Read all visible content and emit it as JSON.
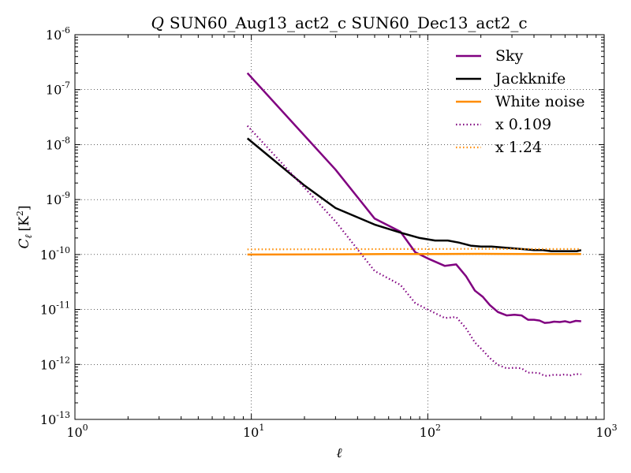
{
  "chart_data": {
    "type": "line",
    "title_var": "Q",
    "title": "SUN60_Aug13_act2_c SUN60_Dec13_act2_c",
    "xlabel": "ℓ",
    "ylabel_main": "C",
    "ylabel_sub": "ℓ",
    "ylabel_unit": "[K",
    "ylabel_unit_sup": "2",
    "ylabel_unit_close": "]",
    "x_scale": "log",
    "y_scale": "log",
    "xlim": [
      1,
      1000
    ],
    "ylim": [
      1e-13,
      1e-06
    ],
    "grid": true,
    "legend_position": "top-right",
    "x_ticks": [
      {
        "base": "10",
        "exp": "0",
        "value": 1
      },
      {
        "base": "10",
        "exp": "1",
        "value": 10
      },
      {
        "base": "10",
        "exp": "2",
        "value": 100
      },
      {
        "base": "10",
        "exp": "3",
        "value": 1000
      }
    ],
    "y_ticks": [
      {
        "base": "10",
        "exp": "-6",
        "value": 1e-06
      },
      {
        "base": "10",
        "exp": "-7",
        "value": 1e-07
      },
      {
        "base": "10",
        "exp": "-8",
        "value": 1e-08
      },
      {
        "base": "10",
        "exp": "-9",
        "value": 1e-09
      },
      {
        "base": "10",
        "exp": "-10",
        "value": 1e-10
      },
      {
        "base": "10",
        "exp": "-11",
        "value": 1e-11
      },
      {
        "base": "10",
        "exp": "-12",
        "value": 1e-12
      },
      {
        "base": "10",
        "exp": "-13",
        "value": 1e-13
      }
    ],
    "series": [
      {
        "name": "Sky",
        "color": "#800080",
        "style": "solid",
        "points": [
          [
            9.5,
            2e-07
          ],
          [
            30,
            3.5e-09
          ],
          [
            50,
            4.5e-10
          ],
          [
            70,
            2.6e-10
          ],
          [
            85,
            1.1e-10
          ],
          [
            100,
            8.5e-11
          ],
          [
            125,
            6.2e-11
          ],
          [
            145,
            6.6e-11
          ],
          [
            165,
            4e-11
          ],
          [
            185,
            2.2e-11
          ],
          [
            205,
            1.7e-11
          ],
          [
            225,
            1.2e-11
          ],
          [
            250,
            9e-12
          ],
          [
            280,
            7.8e-12
          ],
          [
            310,
            8e-12
          ],
          [
            340,
            7.8e-12
          ],
          [
            370,
            6.5e-12
          ],
          [
            400,
            6.5e-12
          ],
          [
            430,
            6.3e-12
          ],
          [
            460,
            5.7e-12
          ],
          [
            490,
            5.8e-12
          ],
          [
            520,
            6e-12
          ],
          [
            560,
            5.9e-12
          ],
          [
            600,
            6.1e-12
          ],
          [
            640,
            5.8e-12
          ],
          [
            690,
            6.2e-12
          ],
          [
            740,
            6.1e-12
          ]
        ]
      },
      {
        "name": "Jackknife",
        "color": "#000000",
        "style": "solid",
        "points": [
          [
            9.5,
            1.3e-08
          ],
          [
            20,
            1.8e-09
          ],
          [
            30,
            7e-10
          ],
          [
            50,
            3.5e-10
          ],
          [
            70,
            2.5e-10
          ],
          [
            90,
            2e-10
          ],
          [
            110,
            1.8e-10
          ],
          [
            130,
            1.8e-10
          ],
          [
            150,
            1.65e-10
          ],
          [
            175,
            1.45e-10
          ],
          [
            200,
            1.4e-10
          ],
          [
            230,
            1.4e-10
          ],
          [
            260,
            1.35e-10
          ],
          [
            300,
            1.3e-10
          ],
          [
            350,
            1.25e-10
          ],
          [
            400,
            1.2e-10
          ],
          [
            450,
            1.2e-10
          ],
          [
            500,
            1.15e-10
          ],
          [
            550,
            1.15e-10
          ],
          [
            600,
            1.15e-10
          ],
          [
            650,
            1.15e-10
          ],
          [
            700,
            1.15e-10
          ],
          [
            740,
            1.2e-10
          ]
        ]
      },
      {
        "name": "White noise",
        "color": "#ff8c00",
        "style": "solid",
        "points": [
          [
            9.5,
            1e-10
          ],
          [
            30,
            1.01e-10
          ],
          [
            60,
            1.02e-10
          ],
          [
            100,
            1.02e-10
          ],
          [
            200,
            1.03e-10
          ],
          [
            400,
            1.02e-10
          ],
          [
            740,
            1.02e-10
          ]
        ]
      },
      {
        "name": "x 0.109",
        "color": "#800080",
        "style": "dotted",
        "points": [
          [
            9.5,
            2.2e-08
          ],
          [
            30,
            4e-10
          ],
          [
            50,
            5e-11
          ],
          [
            70,
            2.8e-11
          ],
          [
            85,
            1.3e-11
          ],
          [
            100,
            1e-11
          ],
          [
            125,
            7e-12
          ],
          [
            145,
            7.3e-12
          ],
          [
            165,
            4.5e-12
          ],
          [
            185,
            2.5e-12
          ],
          [
            205,
            1.8e-12
          ],
          [
            225,
            1.3e-12
          ],
          [
            250,
            9.8e-13
          ],
          [
            280,
            8.5e-13
          ],
          [
            310,
            8.7e-13
          ],
          [
            340,
            8.5e-13
          ],
          [
            370,
            7.1e-13
          ],
          [
            400,
            7.1e-13
          ],
          [
            430,
            6.9e-13
          ],
          [
            460,
            6.2e-13
          ],
          [
            490,
            6.3e-13
          ],
          [
            520,
            6.5e-13
          ],
          [
            560,
            6.4e-13
          ],
          [
            600,
            6.6e-13
          ],
          [
            640,
            6.3e-13
          ],
          [
            690,
            6.7e-13
          ],
          [
            740,
            6.6e-13
          ]
        ]
      },
      {
        "name": "x 1.24",
        "color": "#ff8c00",
        "style": "dotted",
        "points": [
          [
            9.5,
            1.24e-10
          ],
          [
            30,
            1.25e-10
          ],
          [
            60,
            1.26e-10
          ],
          [
            100,
            1.26e-10
          ],
          [
            200,
            1.27e-10
          ],
          [
            400,
            1.26e-10
          ],
          [
            740,
            1.26e-10
          ]
        ]
      }
    ]
  }
}
